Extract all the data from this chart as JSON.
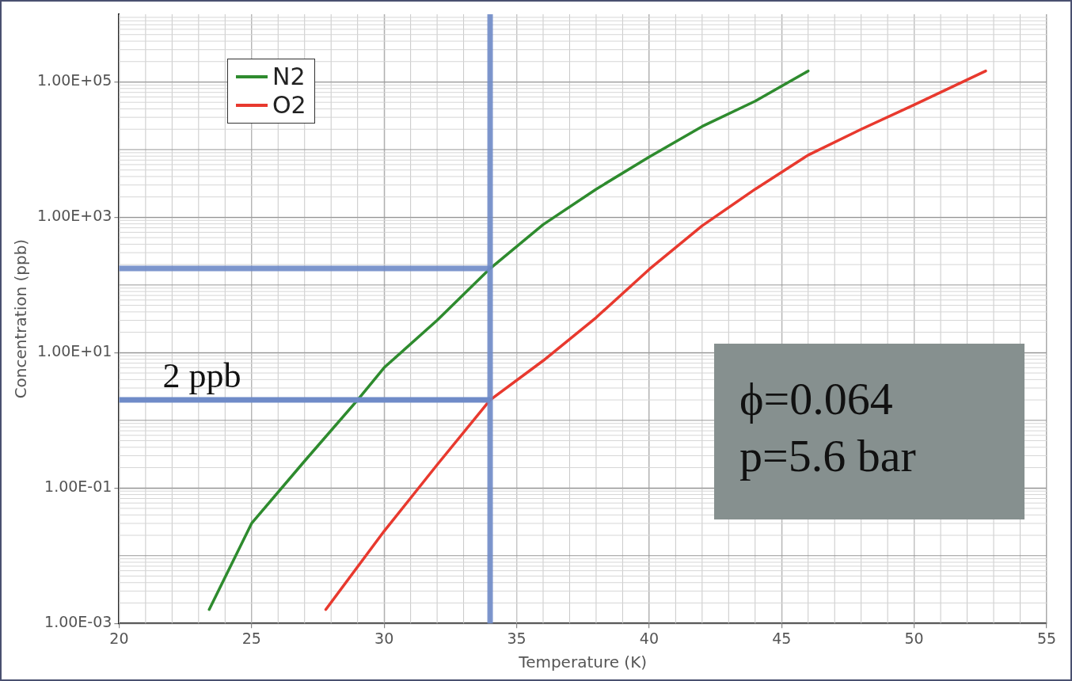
{
  "chart_data": {
    "type": "line",
    "xlabel": "Temperature (K)",
    "ylabel": "Concentration (ppb)",
    "xlim": [
      20,
      55
    ],
    "xticks": [
      20,
      25,
      30,
      35,
      40,
      45,
      50,
      55
    ],
    "ylim": [
      0.001,
      1000000
    ],
    "yticks": [
      {
        "value": 0.001,
        "label": "1.00E-03"
      },
      {
        "value": 0.1,
        "label": "1.00E-01"
      },
      {
        "value": 10,
        "label": "1.00E+01"
      },
      {
        "value": 1000,
        "label": "1.00E+03"
      },
      {
        "value": 100000,
        "label": "1.00E+05"
      }
    ],
    "log": "y",
    "grid": true,
    "legend": "top left",
    "marker": "none",
    "line_style": "solid",
    "series": [
      {
        "name": "N2",
        "color": "#2e8b2e",
        "x": [
          23.4,
          25,
          27,
          29,
          30,
          32,
          34,
          36,
          38,
          40,
          42,
          44,
          46
        ],
        "values": [
          0.0016,
          0.03,
          0.25,
          2,
          6,
          30,
          175,
          780,
          2600,
          7800,
          22000,
          52000,
          145000
        ]
      },
      {
        "name": "O2",
        "color": "#e8392e",
        "x": [
          27.8,
          30,
          32,
          34,
          36,
          38,
          40,
          42,
          44,
          46,
          48,
          50,
          52.7
        ],
        "values": [
          0.0016,
          0.023,
          0.22,
          2,
          7.6,
          33,
          170,
          750,
          2600,
          8300,
          20000,
          46000,
          145000
        ]
      }
    ],
    "ref_lines": [
      {
        "axis": "x",
        "value": 34,
        "color": "#6f8bc8"
      },
      {
        "axis": "y",
        "value": 175,
        "color": "#6f8bc8"
      },
      {
        "axis": "y",
        "value": 2,
        "label": "2 ppb",
        "color": "#6f8bc8"
      }
    ],
    "annotations": [
      "ϕ=0.064",
      "p=5.6 bar"
    ]
  }
}
